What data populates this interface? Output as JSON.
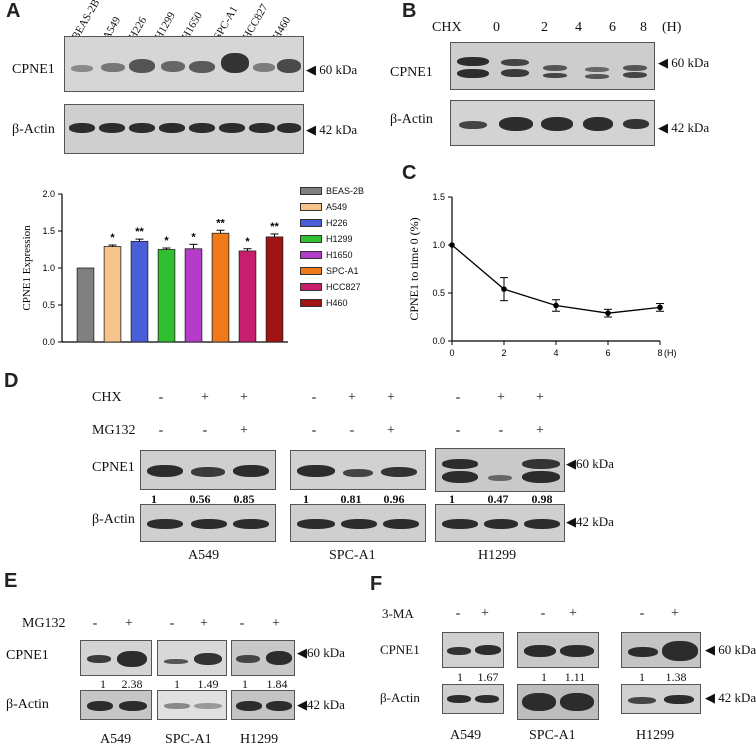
{
  "panels": {
    "A": "A",
    "B": "B",
    "C": "C",
    "D": "D",
    "E": "E",
    "F": "F"
  },
  "panelA": {
    "lanes": [
      "BEAS-2B",
      "A549",
      "H226",
      "H1299",
      "H1650",
      "SPC-A1",
      "HCC827",
      "H460"
    ],
    "row1": "CPNE1",
    "row2": "β-Actin",
    "kda1": "◀ 60 kDa",
    "kda2": "◀ 42 kDa"
  },
  "panelB": {
    "cond": "CHX",
    "times": [
      "0",
      "2",
      "4",
      "6",
      "8",
      "(H)"
    ],
    "row1": "CPNE1",
    "row2": "β-Actin",
    "kda1": "◀ 60 kDa",
    "kda2": "◀ 42 kDa"
  },
  "panelD": {
    "row_chx": "CHX",
    "row_mg": "MG132",
    "row1": "CPNE1",
    "row2": "β-Actin",
    "groups": [
      {
        "name": "A549",
        "chx": [
          "-",
          "+",
          "+"
        ],
        "mg": [
          "-",
          "-",
          "+"
        ],
        "q": [
          "1",
          "0.56",
          "0.85"
        ]
      },
      {
        "name": "SPC-A1",
        "chx": [
          "-",
          "+",
          "+"
        ],
        "mg": [
          "-",
          "-",
          "+"
        ],
        "q": [
          "1",
          "0.81",
          "0.96"
        ]
      },
      {
        "name": "H1299",
        "chx": [
          "-",
          "+",
          "+"
        ],
        "mg": [
          "-",
          "-",
          "+"
        ],
        "q": [
          "1",
          "0.47",
          "0.98"
        ]
      }
    ],
    "kda1": "◀60 kDa",
    "kda2": "◀42 kDa"
  },
  "panelE": {
    "treat": "MG132",
    "row1": "CPNE1",
    "row2": "β-Actin",
    "groups": [
      {
        "name": "A549",
        "signs": [
          "-",
          "+"
        ],
        "q": [
          "1",
          "2.38"
        ]
      },
      {
        "name": "SPC-A1",
        "signs": [
          "-",
          "+"
        ],
        "q": [
          "1",
          "1.49"
        ]
      },
      {
        "name": "H1299",
        "signs": [
          "-",
          "+"
        ],
        "q": [
          "1",
          "1.84"
        ]
      }
    ],
    "kda1": "◀60 kDa",
    "kda2": "◀42 kDa"
  },
  "panelF": {
    "treat": "3-MA",
    "row1": "CPNE1",
    "row2": "β-Actin",
    "groups": [
      {
        "name": "A549",
        "signs": [
          "-",
          "+"
        ],
        "q": [
          "1",
          "1.67"
        ]
      },
      {
        "name": "SPC-A1",
        "signs": [
          "-",
          "+"
        ],
        "q": [
          "1",
          "1.11"
        ]
      },
      {
        "name": "H1299",
        "signs": [
          "-",
          "+"
        ],
        "q": [
          "1",
          "1.38"
        ]
      }
    ],
    "kda1": "◀ 60 kDa",
    "kda2": "◀ 42 kDa"
  },
  "chart_data": [
    {
      "type": "bar",
      "ylabel": "CPNE1 Expression",
      "ylim": [
        0,
        2.0
      ],
      "yticks": [
        "0.0",
        "0.5",
        "1.0",
        "1.5",
        "2.0"
      ],
      "categories": [
        "BEAS-2B",
        "A549",
        "H226",
        "H1299",
        "H1650",
        "SPC-A1",
        "HCC827",
        "H460"
      ],
      "values": [
        1.0,
        1.29,
        1.36,
        1.25,
        1.26,
        1.47,
        1.23,
        1.42
      ],
      "errors": [
        0,
        0.02,
        0.03,
        0.02,
        0.06,
        0.04,
        0.03,
        0.04
      ],
      "significance": [
        "",
        "*",
        "**",
        "*",
        "*",
        "**",
        "*",
        "**"
      ],
      "colors": [
        "#808080",
        "#f6c48a",
        "#4a5ed8",
        "#2fbf2f",
        "#b43cc8",
        "#f07a1a",
        "#c81e6e",
        "#a01414"
      ],
      "legend": [
        "BEAS-2B",
        "A549",
        "H226",
        "H1299",
        "H1650",
        "SPC-A1",
        "HCC827",
        "H460"
      ],
      "legend_placement": "right"
    },
    {
      "type": "line",
      "ylabel": "CPNE1 to time 0 (%)",
      "x": [
        0,
        2,
        4,
        6,
        8
      ],
      "y": [
        1.0,
        0.54,
        0.37,
        0.29,
        0.35
      ],
      "errors": [
        0,
        0.12,
        0.06,
        0.04,
        0.04
      ],
      "xticks": [
        "0",
        "2",
        "4",
        "6",
        "8"
      ],
      "xunit": "(H)",
      "ylim": [
        0,
        1.5
      ],
      "yticks": [
        "0.0",
        "0.5",
        "1.0",
        "1.5"
      ]
    }
  ]
}
